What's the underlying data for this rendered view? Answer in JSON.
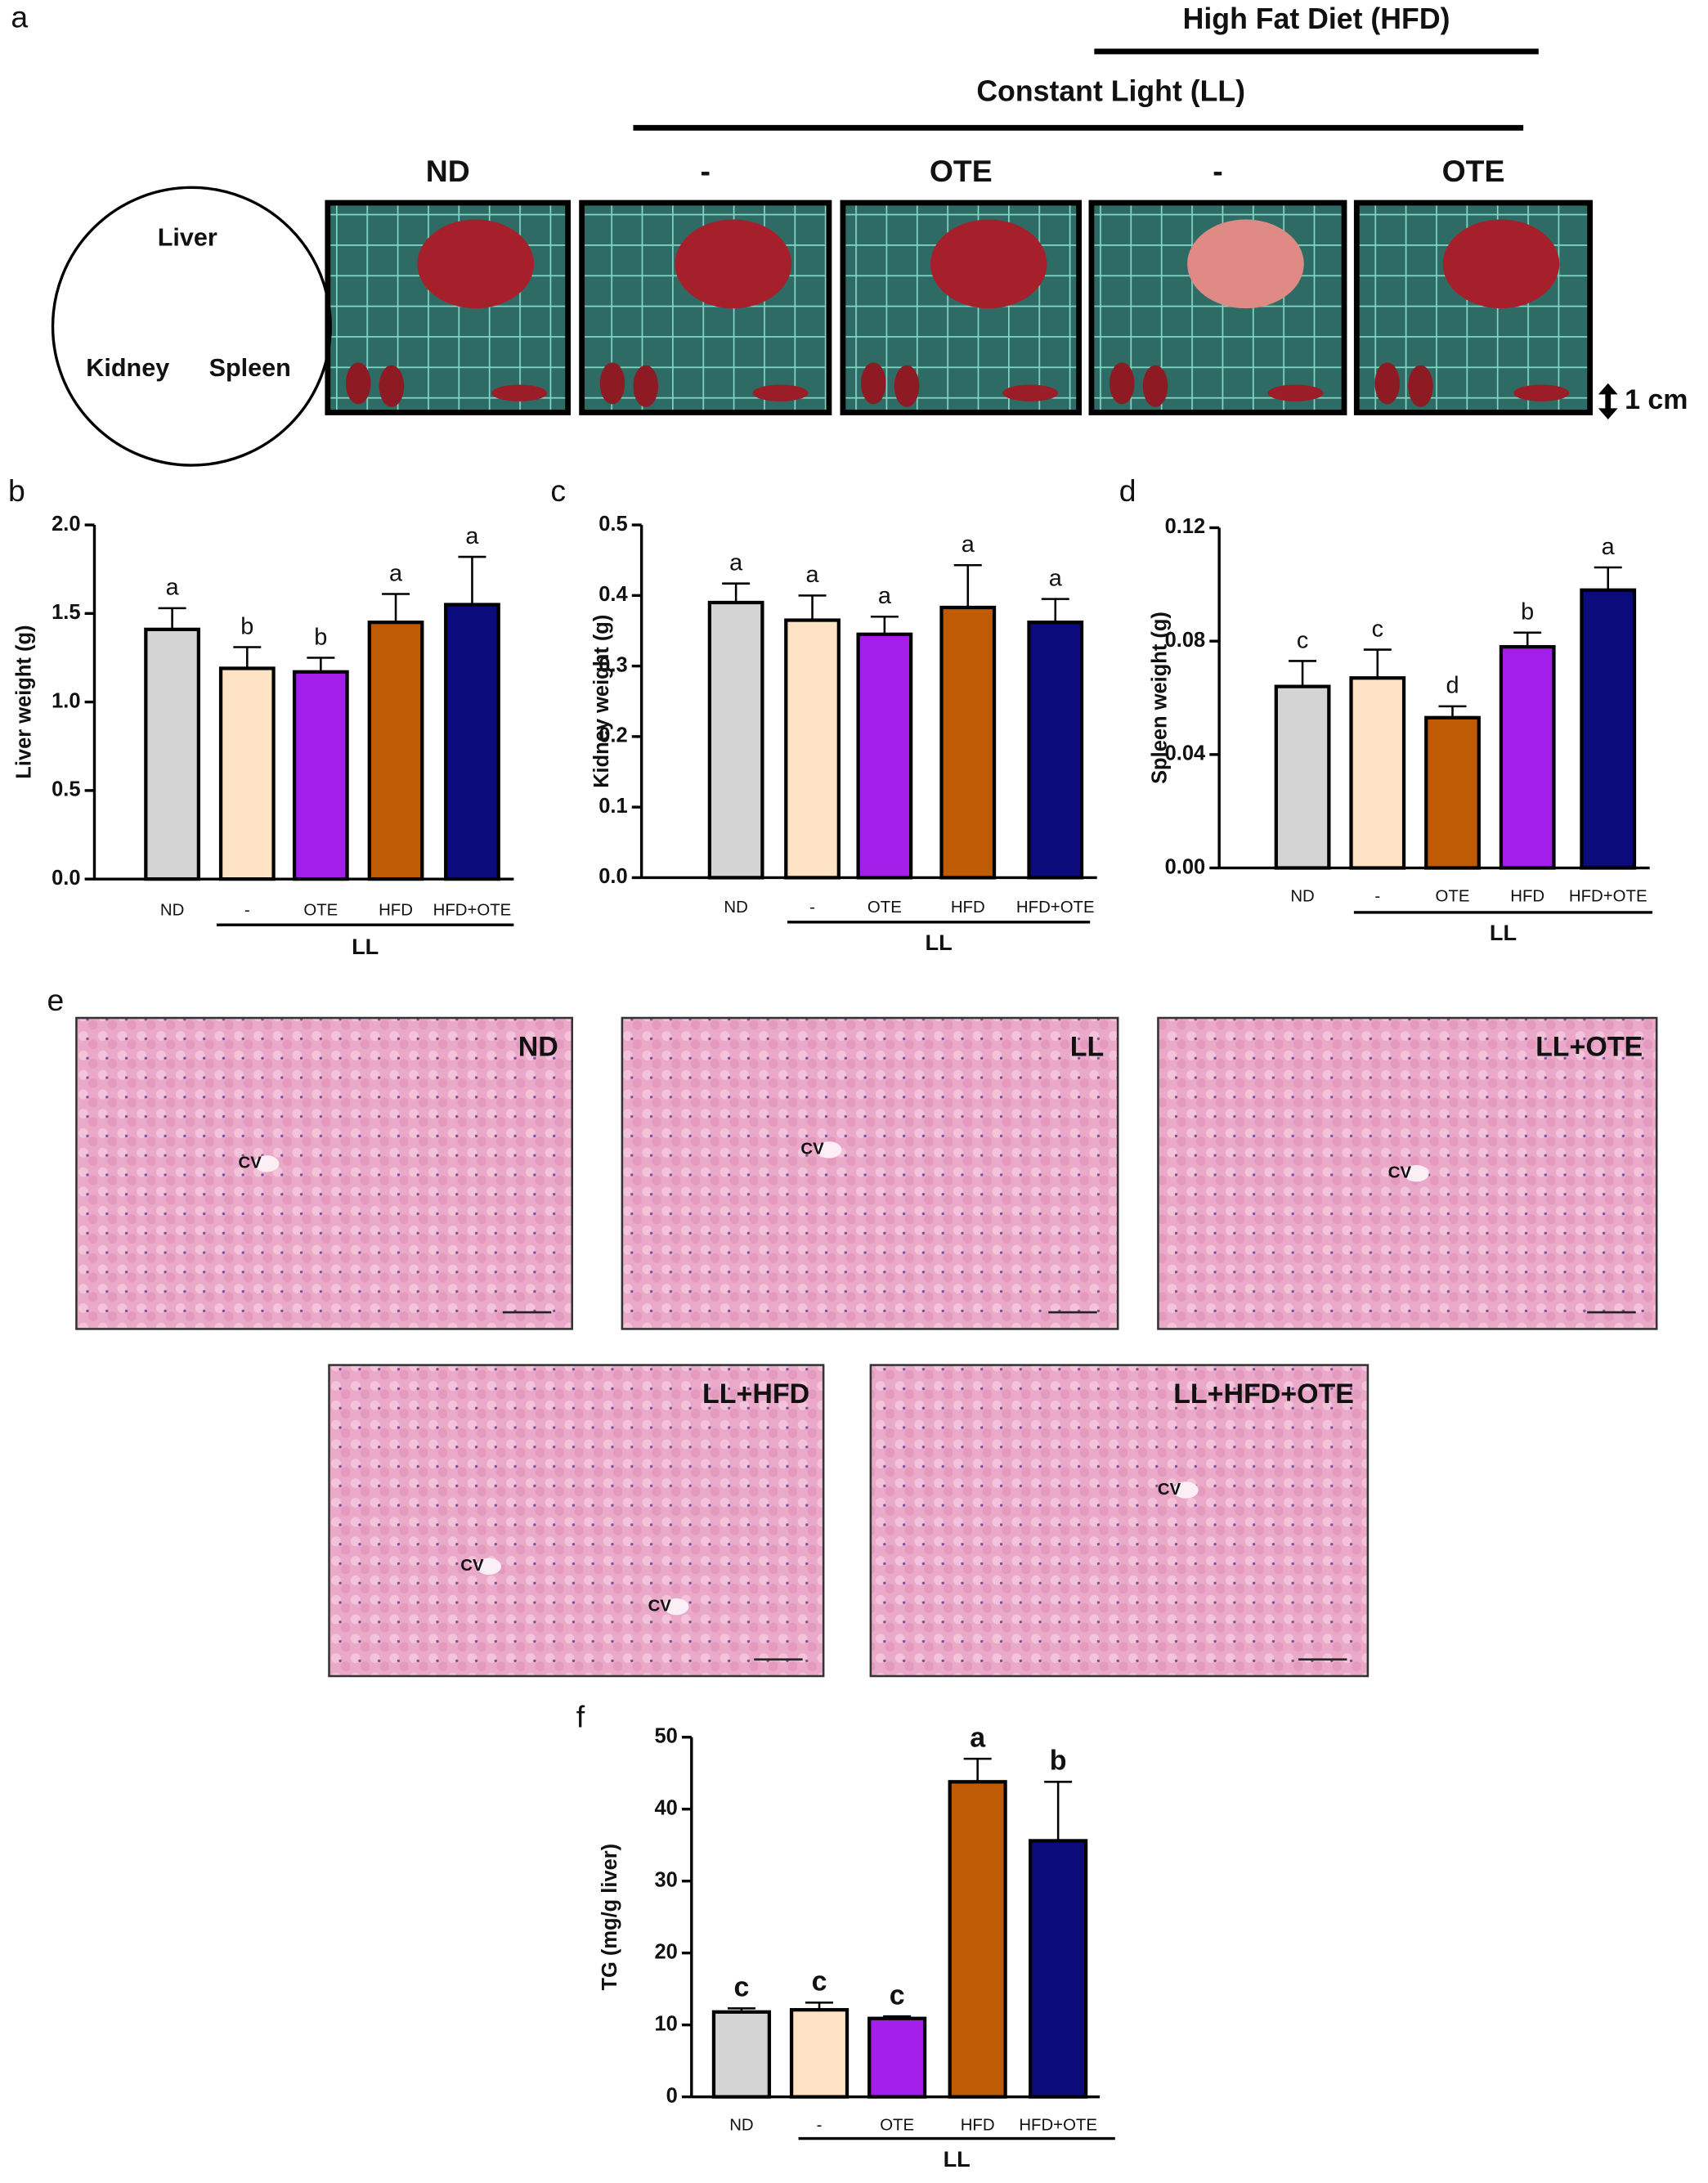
{
  "panel_a": {
    "label": "a",
    "hfd_label": "High Fat Diet (HFD)",
    "ll_label": "Constant Light (LL)",
    "columns": [
      "ND",
      "-",
      "OTE",
      "-",
      "OTE"
    ],
    "diagram": {
      "liver": "Liver",
      "kidney": "Kidney",
      "spleen": "Spleen"
    },
    "scale_bar": "1 cm"
  },
  "chart_data": [
    {
      "type": "bar",
      "panel": "b",
      "ylabel": "Liver weight (g)",
      "categories": [
        "ND",
        "-",
        "OTE",
        "HFD",
        "HFD+OTE"
      ],
      "group_label": "LL",
      "values": [
        1.41,
        1.19,
        1.17,
        1.45,
        1.55
      ],
      "errors": [
        0.12,
        0.12,
        0.08,
        0.16,
        0.27
      ],
      "letters": [
        "a",
        "b",
        "b",
        "a",
        "a"
      ],
      "colors": [
        "#d4d4d4",
        "#fde2c4",
        "#a31ee8",
        "#bf5b04",
        "#0b0b7c"
      ],
      "ylim": [
        0,
        2
      ],
      "yticks": [
        {
          "value": 0,
          "label": "0.0"
        },
        {
          "value": 0.5,
          "label": "0.5"
        },
        {
          "value": 1,
          "label": "1.0"
        },
        {
          "value": 1.5,
          "label": "1.5"
        },
        {
          "value": 2,
          "label": "2.0"
        }
      ]
    },
    {
      "type": "bar",
      "panel": "c",
      "ylabel": "Kidney weight (g)",
      "categories": [
        "ND",
        "-",
        "OTE",
        "HFD",
        "HFD+OTE"
      ],
      "group_label": "LL",
      "values": [
        0.39,
        0.365,
        0.345,
        0.383,
        0.362
      ],
      "errors": [
        0.027,
        0.035,
        0.025,
        0.06,
        0.033
      ],
      "letters": [
        "a",
        "a",
        "a",
        "a",
        "a"
      ],
      "colors": [
        "#d4d4d4",
        "#fde2c4",
        "#a31ee8",
        "#bf5b04",
        "#0b0b7c"
      ],
      "ylim": [
        0,
        0.5
      ],
      "yticks": [
        {
          "value": 0,
          "label": "0.0"
        },
        0.1,
        0.2,
        0.3,
        0.4,
        0.5
      ]
    },
    {
      "type": "bar",
      "panel": "d",
      "ylabel": "Spleen weight (g)",
      "categories": [
        "ND",
        "-",
        "OTE",
        "HFD",
        "HFD+OTE"
      ],
      "group_label": "LL",
      "values": [
        0.064,
        0.067,
        0.053,
        0.078,
        0.098
      ],
      "errors": [
        0.009,
        0.01,
        0.004,
        0.005,
        0.008
      ],
      "letters": [
        "c",
        "c",
        "d",
        "b",
        "a"
      ],
      "colors": [
        "#d4d4d4",
        "#fde2c4",
        "#bf5b04",
        "#a31ee8",
        "#0b0b7c"
      ],
      "ylim": [
        0,
        0.12
      ],
      "yticks": [
        {
          "value": 0,
          "label": "0.00"
        },
        {
          "value": 0.04,
          "label": "0.04"
        },
        {
          "value": 0.08,
          "label": "0.08"
        },
        {
          "value": 0.12,
          "label": "0.12"
        }
      ]
    },
    {
      "type": "bar",
      "panel": "f",
      "ylabel": "TG (mg/g liver)",
      "categories": [
        "ND",
        "-",
        "OTE",
        "HFD",
        "HFD+OTE"
      ],
      "group_label": "LL",
      "values": [
        11.8,
        12.1,
        10.9,
        43.8,
        35.6
      ],
      "errors": [
        0.5,
        1.0,
        0.3,
        3.2,
        8.2
      ],
      "letters": [
        "c",
        "c",
        "c",
        "a",
        "b"
      ],
      "colors": [
        "#d4d4d4",
        "#fde2c4",
        "#a31ee8",
        "#bf5b04",
        "#0b0b7c"
      ],
      "ylim": [
        0,
        50
      ],
      "yticks": [
        0,
        10,
        20,
        30,
        40,
        50
      ]
    }
  ],
  "panel_e": {
    "label": "e",
    "images": [
      {
        "label": "ND",
        "cv": [
          "CV"
        ]
      },
      {
        "label": "LL",
        "cv": [
          "CV"
        ]
      },
      {
        "label": "LL+OTE",
        "cv": [
          "CV"
        ]
      },
      {
        "label": "LL+HFD",
        "cv": [
          "CV",
          "CV"
        ]
      },
      {
        "label": "LL+HFD+OTE",
        "cv": [
          "CV"
        ]
      }
    ]
  }
}
